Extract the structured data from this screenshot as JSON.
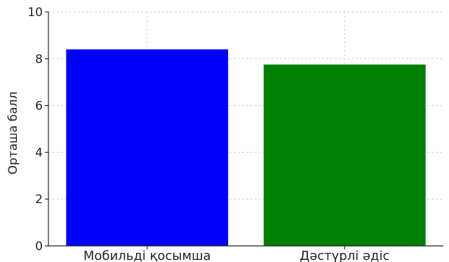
{
  "chart_data": {
    "type": "bar",
    "title": "",
    "xlabel": "",
    "ylabel": "Орташа балл",
    "categories": [
      "Мобильді қосымша",
      "Дәстүрлі әдіс"
    ],
    "values": [
      8.4,
      7.75
    ],
    "colors": [
      "#0000ff",
      "#008000"
    ],
    "ylim": [
      0,
      10
    ],
    "yticks": [
      0,
      2,
      4,
      6,
      8,
      10
    ],
    "grid": true,
    "legend": "none"
  }
}
